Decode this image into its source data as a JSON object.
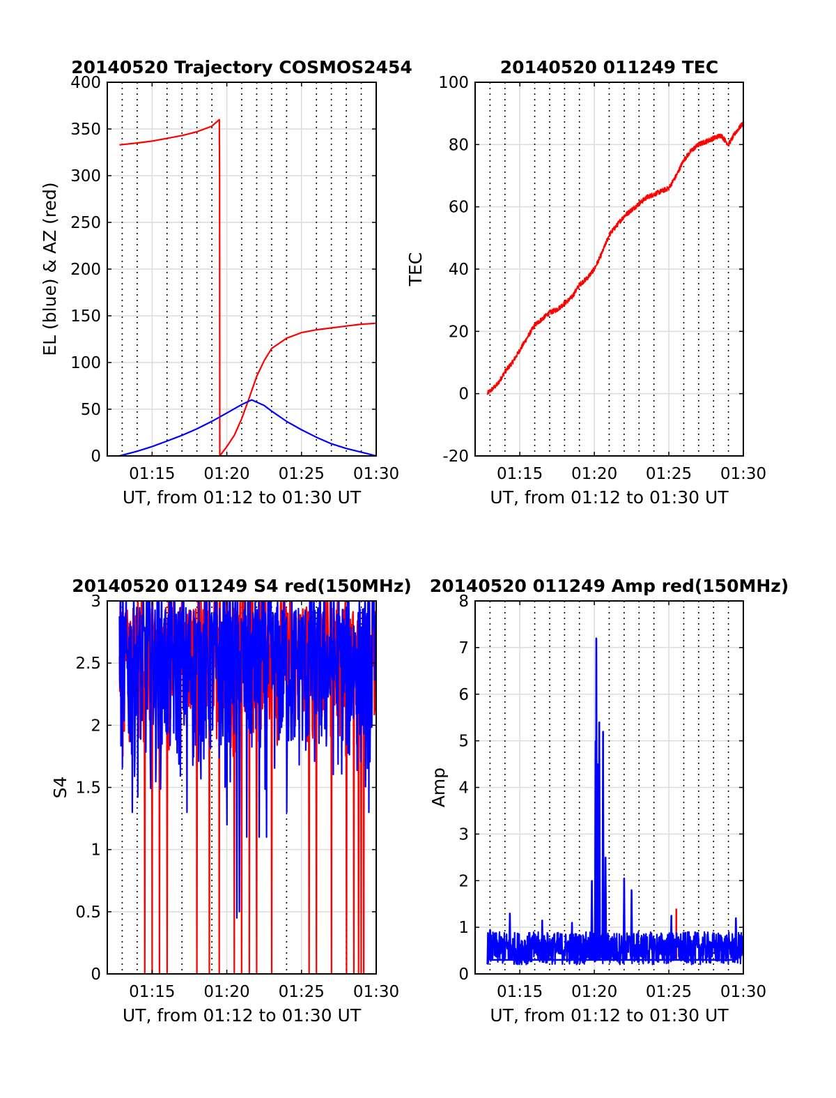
{
  "chart_data": [
    {
      "id": "trajectory",
      "type": "line",
      "title": "20140520 Trajectory COSMOS2454",
      "xlabel": "UT, from 01:12 to 01:30 UT",
      "ylabel": "EL (blue) & AZ (red)",
      "xlim": [
        "01:12",
        "01:30"
      ],
      "ylim": [
        0,
        400
      ],
      "x_ticks": [
        "01:15",
        "01:20",
        "01:25",
        "01:30"
      ],
      "y_ticks": [
        0,
        50,
        100,
        150,
        200,
        250,
        300,
        350,
        400
      ],
      "grid": true,
      "series": [
        {
          "color": "#ff0000",
          "x": [
            "01:12:49",
            "01:14:00",
            "01:15:00",
            "01:16:00",
            "01:17:00",
            "01:18:00",
            "01:19:00",
            "01:19:30",
            "01:19:31",
            "01:19:32",
            "01:20:00",
            "01:20:30",
            "01:21:00",
            "01:21:30",
            "01:22:00",
            "01:22:30",
            "01:23:00",
            "01:24:00",
            "01:25:00",
            "01:26:00",
            "01:27:00",
            "01:28:00",
            "01:29:00",
            "01:30:00"
          ],
          "y": [
            333,
            335,
            337,
            340,
            343,
            347,
            353,
            360,
            300,
            0,
            10,
            22,
            40,
            62,
            85,
            102,
            115,
            126,
            132,
            135,
            137,
            139,
            141,
            142
          ]
        },
        {
          "color": "#0000ff",
          "x": [
            "01:12:49",
            "01:14:00",
            "01:15:00",
            "01:16:00",
            "01:17:00",
            "01:18:00",
            "01:19:00",
            "01:20:00",
            "01:21:00",
            "01:21:40",
            "01:22:30",
            "01:23:00",
            "01:24:00",
            "01:25:00",
            "01:26:00",
            "01:27:00",
            "01:28:00",
            "01:29:00",
            "01:30:00"
          ],
          "y": [
            0,
            5,
            10,
            16,
            22,
            29,
            37,
            46,
            55,
            60,
            54,
            48,
            37,
            28,
            20,
            13,
            8,
            4,
            0
          ]
        }
      ]
    },
    {
      "id": "tec",
      "type": "line",
      "title": "20140520 011249 TEC",
      "xlabel": "UT, from 01:12 to 01:30 UT",
      "ylabel": "TEC",
      "xlim": [
        "01:12",
        "01:30"
      ],
      "ylim": [
        -20,
        100
      ],
      "x_ticks": [
        "01:15",
        "01:20",
        "01:25",
        "01:30"
      ],
      "y_ticks": [
        -20,
        0,
        20,
        40,
        60,
        80,
        100
      ],
      "grid": true,
      "series": [
        {
          "color": "#ff0000",
          "x": [
            "01:12:49",
            "01:13:30",
            "01:14:00",
            "01:14:30",
            "01:15:00",
            "01:15:30",
            "01:16:00",
            "01:16:30",
            "01:17:00",
            "01:17:30",
            "01:18:00",
            "01:18:30",
            "01:19:00",
            "01:19:30",
            "01:20:00",
            "01:20:30",
            "01:21:00",
            "01:21:30",
            "01:22:00",
            "01:22:30",
            "01:23:00",
            "01:23:30",
            "01:24:00",
            "01:24:30",
            "01:25:00",
            "01:25:30",
            "01:26:00",
            "01:26:30",
            "01:27:00",
            "01:27:30",
            "01:28:00",
            "01:28:30",
            "01:29:00",
            "01:29:30",
            "01:30:00"
          ],
          "y": [
            0,
            3,
            7,
            10,
            14,
            18,
            22,
            24,
            26,
            27,
            29,
            31,
            35,
            37,
            40,
            45,
            51,
            54,
            57,
            59,
            61,
            63,
            64,
            65,
            66,
            70,
            75,
            78,
            80,
            81,
            82,
            83,
            80,
            84,
            87
          ]
        }
      ]
    },
    {
      "id": "s4",
      "type": "line",
      "title": "20140520 011249 S4 red(150MHz)",
      "xlabel": "UT, from 01:12 to 01:30 UT",
      "ylabel": "S4",
      "xlim": [
        "01:12",
        "01:30"
      ],
      "ylim": [
        0,
        3
      ],
      "x_ticks": [
        "01:15",
        "01:20",
        "01:25",
        "01:30"
      ],
      "y_ticks": [
        0,
        0.5,
        1,
        1.5,
        2,
        2.5,
        3
      ],
      "grid": true,
      "series": [
        {
          "color": "#ff0000",
          "noise": true,
          "x_range": [
            "01:12:49",
            "01:30:00"
          ],
          "band": [
            1.7,
            3
          ],
          "dropouts_to_zero": [
            "01:14:30",
            "01:15:00",
            "01:15:30",
            "01:16:00",
            "01:18:00",
            "01:18:50",
            "01:19:30",
            "01:20:30",
            "01:21:00",
            "01:21:30",
            "01:22:00",
            "01:23:00",
            "01:25:30",
            "01:26:00",
            "01:27:00",
            "01:28:00",
            "01:28:30",
            "01:28:50",
            "01:29:00",
            "01:29:10"
          ]
        },
        {
          "color": "#0000ff",
          "noise": true,
          "x_range": [
            "01:12:49",
            "01:30:00"
          ],
          "band": [
            1.4,
            3
          ],
          "dips": [
            {
              "x": "01:13:40",
              "y": 1.3
            },
            {
              "x": "01:17:20",
              "y": 1.3
            },
            {
              "x": "01:20:00",
              "y": 1.2
            },
            {
              "x": "01:20:40",
              "y": 0.45
            },
            {
              "x": "01:20:50",
              "y": 0.5
            },
            {
              "x": "01:21:20",
              "y": 1.1
            },
            {
              "x": "01:22:10",
              "y": 1.1
            },
            {
              "x": "01:22:40",
              "y": 1.1
            },
            {
              "x": "01:24:00",
              "y": 1.3
            },
            {
              "x": "01:29:30",
              "y": 1.3
            }
          ]
        }
      ]
    },
    {
      "id": "amp",
      "type": "line",
      "title": "20140520 011249 Amp red(150MHz)",
      "xlabel": "UT, from 01:12 to 01:30 UT",
      "ylabel": "Amp",
      "xlim": [
        "01:12",
        "01:30"
      ],
      "ylim": [
        0,
        8
      ],
      "x_ticks": [
        "01:15",
        "01:20",
        "01:25",
        "01:30"
      ],
      "y_ticks": [
        0,
        1,
        2,
        3,
        4,
        5,
        6,
        7,
        8
      ],
      "grid": true,
      "series": [
        {
          "color": "#ff0000",
          "spikes": [
            {
              "x": "01:25:30",
              "y": 1.4
            }
          ]
        },
        {
          "color": "#0000ff",
          "noise": true,
          "x_range": [
            "01:12:49",
            "01:30:00"
          ],
          "band": [
            0.2,
            0.9
          ],
          "spikes": [
            {
              "x": "01:13:00",
              "y": 0.95
            },
            {
              "x": "01:14:20",
              "y": 1.3
            },
            {
              "x": "01:16:30",
              "y": 1.15
            },
            {
              "x": "01:18:30",
              "y": 1.1
            },
            {
              "x": "01:19:50",
              "y": 2.0
            },
            {
              "x": "01:20:05",
              "y": 5.0
            },
            {
              "x": "01:20:08",
              "y": 7.2
            },
            {
              "x": "01:20:15",
              "y": 4.5
            },
            {
              "x": "01:20:20",
              "y": 5.4
            },
            {
              "x": "01:20:35",
              "y": 5.2
            },
            {
              "x": "01:20:45",
              "y": 2.5
            },
            {
              "x": "01:22:00",
              "y": 2.05
            },
            {
              "x": "01:22:30",
              "y": 1.8
            },
            {
              "x": "01:25:10",
              "y": 1.25
            },
            {
              "x": "01:29:30",
              "y": 1.2
            }
          ]
        }
      ]
    }
  ]
}
